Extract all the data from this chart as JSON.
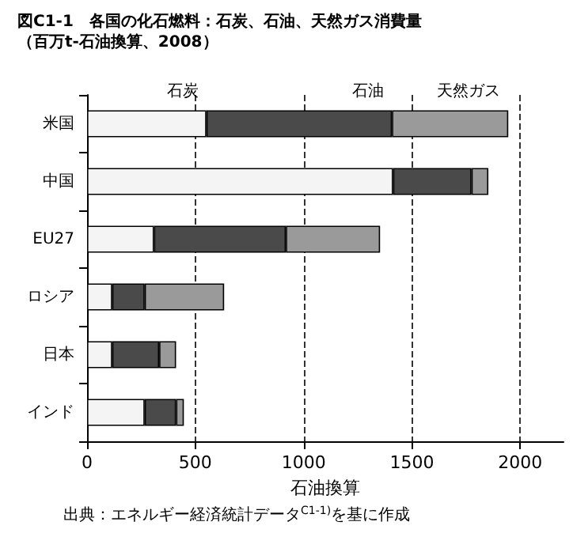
{
  "chart_data": {
    "type": "bar",
    "orientation": "horizontal",
    "stacked": true,
    "title": "図C1-1　各国の化石燃料：石炭、石油、天然ガス消費量",
    "subtitle": "（百万t-石油換算、2008）",
    "xlabel": "石油換算",
    "categories": [
      "米国",
      "中国",
      "EU27",
      "ロシア",
      "日本",
      "インド"
    ],
    "series": [
      {
        "name": "石炭",
        "color": "#f4f4f4",
        "values": [
          551,
          1413,
          309,
          116,
          116,
          266
        ]
      },
      {
        "name": "石油",
        "color": "#4a4a4a",
        "values": [
          857,
          362,
          609,
          150,
          217,
          145
        ]
      },
      {
        "name": "天然ガス",
        "color": "#9a9a9a",
        "values": [
          537,
          78,
          435,
          367,
          78,
          36
        ]
      }
    ],
    "xlim": [
      0,
      2200
    ],
    "xticks": [
      0,
      500,
      1000,
      1500,
      2000
    ],
    "grid": "x",
    "legend": false,
    "annotations": [
      "出典：エネルギー経済統計データ$^{C1-1)}$を基に作成"
    ]
  }
}
